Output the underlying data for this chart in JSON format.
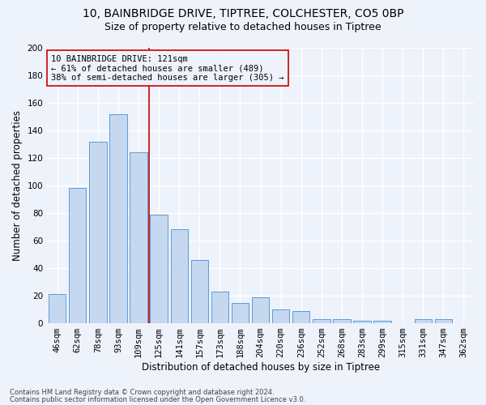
{
  "title1": "10, BAINBRIDGE DRIVE, TIPTREE, COLCHESTER, CO5 0BP",
  "title2": "Size of property relative to detached houses in Tiptree",
  "xlabel": "Distribution of detached houses by size in Tiptree",
  "ylabel": "Number of detached properties",
  "categories": [
    "46sqm",
    "62sqm",
    "78sqm",
    "93sqm",
    "109sqm",
    "125sqm",
    "141sqm",
    "157sqm",
    "173sqm",
    "188sqm",
    "204sqm",
    "220sqm",
    "236sqm",
    "252sqm",
    "268sqm",
    "283sqm",
    "299sqm",
    "315sqm",
    "331sqm",
    "347sqm",
    "362sqm"
  ],
  "values": [
    21,
    98,
    132,
    152,
    124,
    79,
    68,
    46,
    23,
    15,
    19,
    10,
    9,
    3,
    3,
    2,
    2,
    0,
    3,
    3,
    0
  ],
  "bar_color": "#c5d8f0",
  "bar_edge_color": "#5b9bd5",
  "vline_x_index": 4,
  "vline_color": "#cc0000",
  "annotation_line1": "10 BAINBRIDGE DRIVE: 121sqm",
  "annotation_line2": "← 61% of detached houses are smaller (489)",
  "annotation_line3": "38% of semi-detached houses are larger (305) →",
  "annotation_box_edge": "#cc0000",
  "ylim": [
    0,
    200
  ],
  "yticks": [
    0,
    20,
    40,
    60,
    80,
    100,
    120,
    140,
    160,
    180,
    200
  ],
  "footer1": "Contains HM Land Registry data © Crown copyright and database right 2024.",
  "footer2": "Contains public sector information licensed under the Open Government Licence v3.0.",
  "background_color": "#eef2fb",
  "grid_color": "#ffffff",
  "title1_fontsize": 10,
  "title2_fontsize": 9,
  "xlabel_fontsize": 8.5,
  "ylabel_fontsize": 8.5,
  "tick_fontsize": 7.5,
  "annot_fontsize": 7.5,
  "footer_fontsize": 6
}
